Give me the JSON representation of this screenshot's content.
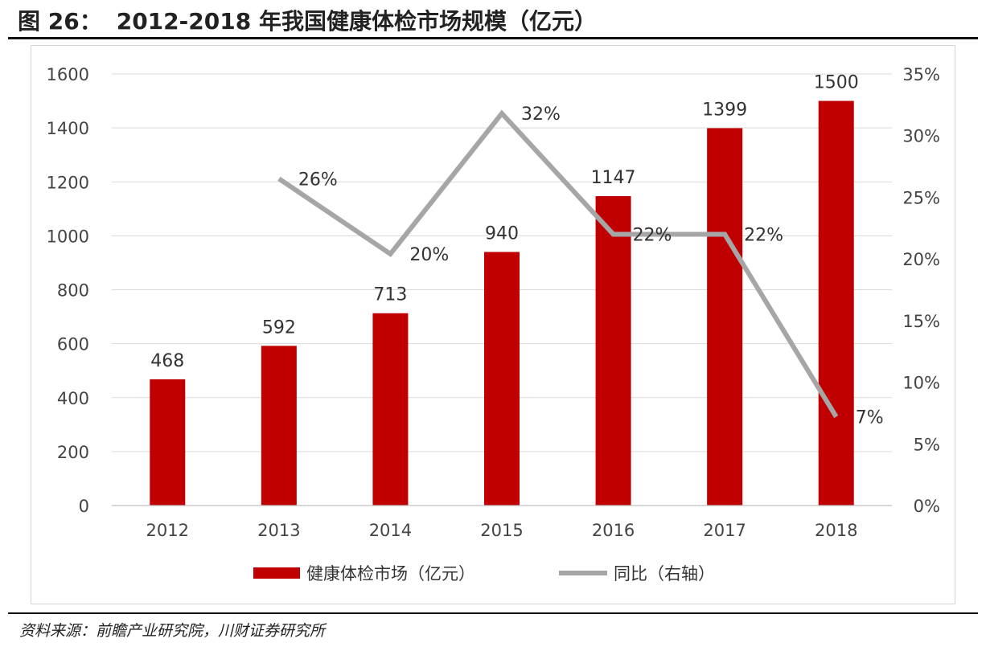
{
  "header": {
    "figure_label": "图 26：",
    "title": "2012-2018 年我国健康体检市场规模（亿元）"
  },
  "source": "资料来源：前瞻产业研究院，川财证券研究所",
  "chart_data": {
    "type": "bar",
    "title": "2012-2018 年我国健康体检市场规模（亿元）",
    "categories": [
      "2012",
      "2013",
      "2014",
      "2015",
      "2016",
      "2017",
      "2018"
    ],
    "series": [
      {
        "name": "健康体检市场（亿元）",
        "type": "bar",
        "axis": "left",
        "color": "#C00000",
        "values": [
          468,
          592,
          713,
          940,
          1147,
          1399,
          1500
        ],
        "labels": [
          "468",
          "592",
          "713",
          "940",
          "1147",
          "1399",
          "1500"
        ]
      },
      {
        "name": "同比（右轴）",
        "type": "line",
        "axis": "right",
        "color": "#A6A6A6",
        "values": [
          null,
          26.5,
          20.4,
          31.8,
          22.0,
          22.0,
          7.2
        ],
        "labels": [
          "",
          "26%",
          "20%",
          "32%",
          "22%",
          "22%",
          "7%"
        ]
      }
    ],
    "y_left": {
      "ylim": [
        0,
        1600
      ],
      "ticks": [
        "0",
        "200",
        "400",
        "600",
        "800",
        "1000",
        "1200",
        "1400",
        "1600"
      ]
    },
    "y_right": {
      "ylim": [
        0,
        35
      ],
      "ticks": [
        "0%",
        "5%",
        "10%",
        "15%",
        "20%",
        "25%",
        "30%",
        "35%"
      ]
    },
    "grid": true,
    "legend": "bottom"
  }
}
